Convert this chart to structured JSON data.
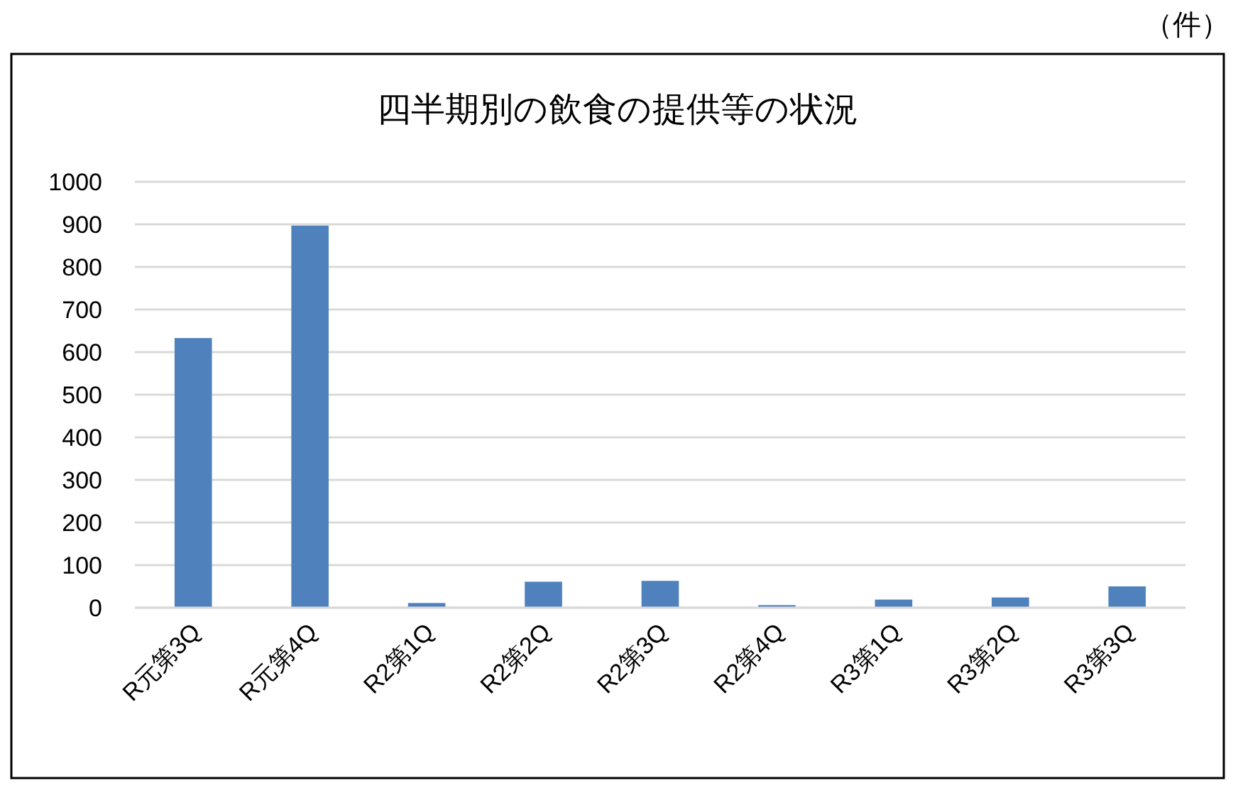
{
  "chart_data": {
    "type": "bar",
    "title": "四半期別の飲食の提供等の状況",
    "annotations": [
      "（件）"
    ],
    "categories": [
      "R元第3Q",
      "R元第4Q",
      "R2第1Q",
      "R2第2Q",
      "R2第3Q",
      "R2第4Q",
      "R3第1Q",
      "R3第2Q",
      "R3第3Q"
    ],
    "values": [
      633,
      897,
      11,
      61,
      63,
      6,
      19,
      24,
      50
    ],
    "color": "#4f81bd",
    "ylim": [
      0,
      1000
    ],
    "yticks": [
      0,
      100,
      200,
      300,
      400,
      500,
      600,
      700,
      800,
      900,
      1000
    ],
    "grid": "y"
  }
}
